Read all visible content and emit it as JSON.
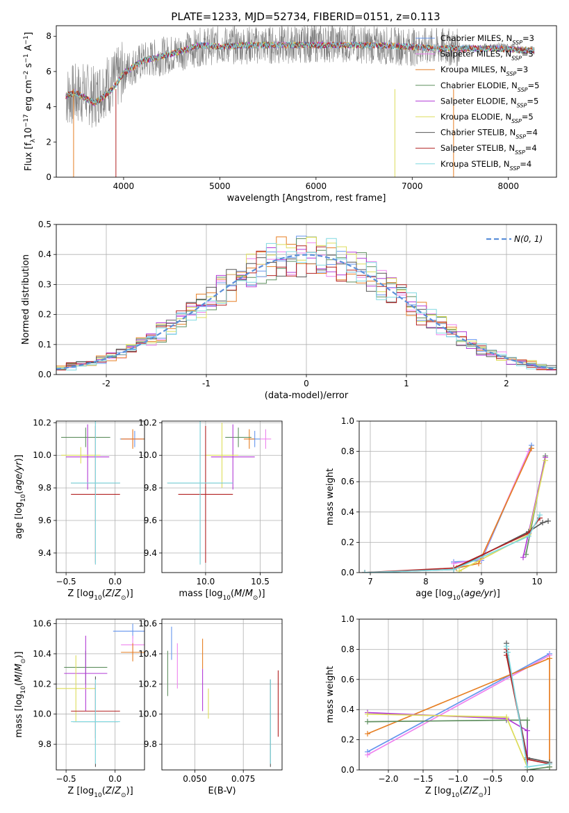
{
  "figure": {
    "title": "PLATE=1233, MJD=52734, FIBERID=0151, z=0.113"
  },
  "series": [
    {
      "name": "Chabrier MILES",
      "nssp": "3",
      "color": "#6495ed"
    },
    {
      "name": "Salpeter MILES",
      "nssp": "3",
      "color": "#ee82ee"
    },
    {
      "name": "Kroupa MILES",
      "nssp": "3",
      "color": "#e67e22"
    },
    {
      "name": "Chabrier ELODIE",
      "nssp": "5",
      "color": "#5f8f5f"
    },
    {
      "name": "Salpeter ELODIE",
      "nssp": "5",
      "color": "#b23ad6"
    },
    {
      "name": "Kroupa ELODIE",
      "nssp": "5",
      "color": "#dcdc5a"
    },
    {
      "name": "Chabrier STELIB",
      "nssp": "4",
      "color": "#555555"
    },
    {
      "name": "Salpeter STELIB",
      "nssp": "4",
      "color": "#b22222"
    },
    {
      "name": "Kroupa STELIB",
      "nssp": "4",
      "color": "#7fd8e0"
    }
  ],
  "chart_data": [
    {
      "id": "spectrum",
      "type": "line",
      "xlabel": "wavelength [Angstrom, rest frame]",
      "ylabel": "Flux [f",
      "xlim": [
        3300,
        8500
      ],
      "ylim": [
        0,
        8.6
      ],
      "xticks": [
        4000,
        5000,
        6000,
        7000,
        8000
      ],
      "yticks": [
        0,
        2,
        4,
        6,
        8
      ],
      "data_line": {
        "name": "data",
        "color": "#808080",
        "x": [
          3400,
          3500,
          3600,
          3700,
          3800,
          3900,
          4000,
          4200,
          4500,
          4800,
          5000,
          5300,
          5600,
          6000,
          6300,
          6600,
          7000,
          7300,
          7600,
          7900,
          8200
        ],
        "y": [
          4.6,
          4.7,
          4.8,
          4.5,
          5.2,
          5.4,
          6.0,
          6.6,
          7.0,
          7.4,
          7.5,
          7.5,
          7.5,
          7.6,
          7.6,
          7.5,
          7.4,
          7.4,
          7.3,
          7.4,
          7.2
        ]
      },
      "model_x": [
        3400,
        3500,
        3600,
        3700,
        3800,
        3900,
        4000,
        4200,
        4500,
        4800,
        5000,
        5300,
        5600,
        6000,
        6300,
        6600,
        7000,
        7300,
        7600,
        7900,
        8200
      ],
      "model_y": [
        4.6,
        4.8,
        4.5,
        4.2,
        4.6,
        5.1,
        5.9,
        6.6,
        7.0,
        7.5,
        7.4,
        7.5,
        7.5,
        7.5,
        7.5,
        7.5,
        7.4,
        7.3,
        7.3,
        7.3,
        7.2
      ]
    },
    {
      "id": "residuals",
      "type": "line",
      "xlabel": "(data-model)/error",
      "ylabel": "Normed distribution",
      "xlim": [
        -2.5,
        2.5
      ],
      "ylim": [
        0,
        0.5
      ],
      "xticks": [
        -2,
        -1,
        0,
        1,
        2
      ],
      "yticks": [
        0.0,
        0.1,
        0.2,
        0.3,
        0.4,
        0.5
      ],
      "legend": "N(0, 1)",
      "gaussian": {
        "mean": 0,
        "sigma": 1
      }
    },
    {
      "id": "age-vs-Z",
      "type": "scatter",
      "xlabel": "Z [log10(Z/Z☉)]",
      "ylabel": "age  [log10(age/yr)]",
      "xlim": [
        -0.6,
        0.3
      ],
      "ylim": [
        9.28,
        10.21
      ],
      "xticks": [
        -0.5,
        0.0
      ],
      "yticks": [
        9.4,
        9.6,
        9.8,
        10.0,
        10.2
      ],
      "points": [
        {
          "x": 0.2,
          "y": 10.1,
          "xerr": 0.15,
          "yerr": 0.05
        },
        {
          "x": 0.18,
          "y": 10.1,
          "xerr": 0.1,
          "yerr": 0.05
        },
        {
          "x": 0.18,
          "y": 10.1,
          "xerr": 0.12,
          "yerr": 0.06
        },
        {
          "x": -0.3,
          "y": 10.11,
          "xerr": 0.25,
          "yerr": 0.06
        },
        {
          "x": -0.28,
          "y": 9.99,
          "xerr": 0.22,
          "yerr": 0.2
        },
        {
          "x": -0.35,
          "y": 10.0,
          "xerr": 0.2,
          "yerr": 0.05
        },
        {
          "x": -0.2,
          "y": 9.83,
          "xerr": 0.25,
          "yerr": 0.5
        },
        {
          "x": -0.2,
          "y": 9.76,
          "xerr": 0.25,
          "yerr": 0.42
        },
        {
          "x": -0.2,
          "y": 9.83,
          "xerr": 0.25,
          "yerr": 0.5
        }
      ]
    },
    {
      "id": "age-vs-mass",
      "type": "scatter",
      "xlabel": "mass [log10(M/M☉)]",
      "ylabel": "",
      "xlim": [
        9.6,
        10.7
      ],
      "ylim": [
        9.28,
        10.21
      ],
      "xticks": [
        10.0,
        10.5
      ],
      "yticks": [
        9.4,
        9.6,
        9.8,
        10.0,
        10.2
      ],
      "points": [
        {
          "x": 10.45,
          "y": 10.1,
          "xerr": 0.05,
          "yerr": 0.05
        },
        {
          "x": 10.55,
          "y": 10.1,
          "xerr": 0.05,
          "yerr": 0.06
        },
        {
          "x": 10.4,
          "y": 10.1,
          "xerr": 0.05,
          "yerr": 0.06
        },
        {
          "x": 10.3,
          "y": 10.11,
          "xerr": 0.12,
          "yerr": 0.06
        },
        {
          "x": 10.25,
          "y": 9.99,
          "xerr": 0.2,
          "yerr": 0.2
        },
        {
          "x": 10.15,
          "y": 10.0,
          "xerr": 0.15,
          "yerr": 0.2
        },
        {
          "x": 9.95,
          "y": 9.83,
          "xerr": 0.3,
          "yerr": 0.5
        },
        {
          "x": 10.0,
          "y": 9.76,
          "xerr": 0.25,
          "yerr": 0.42
        },
        {
          "x": 9.95,
          "y": 9.83,
          "xerr": 0.3,
          "yerr": 0.5
        }
      ]
    },
    {
      "id": "weight-vs-age",
      "type": "line",
      "xlabel": "age  [log10(age/yr)]",
      "ylabel": "mass weight",
      "xlim": [
        6.8,
        10.35
      ],
      "ylim": [
        0,
        1.0
      ],
      "xticks": [
        7,
        8,
        9,
        10
      ],
      "yticks": [
        0.0,
        0.2,
        0.4,
        0.6,
        0.8,
        1.0
      ],
      "curves": [
        {
          "x": [
            8.5,
            9.0,
            9.9
          ],
          "y": [
            0.07,
            0.08,
            0.84
          ]
        },
        {
          "x": [
            8.5,
            9.0,
            9.85
          ],
          "y": [
            0.06,
            0.09,
            0.8
          ]
        },
        {
          "x": [
            8.55,
            8.95,
            9.9
          ],
          "y": [
            0.03,
            0.06,
            0.82
          ]
        },
        {
          "x": [
            9.8,
            10.15
          ],
          "y": [
            0.12,
            0.77
          ]
        },
        {
          "x": [
            9.75,
            10.15
          ],
          "y": [
            0.1,
            0.76
          ]
        },
        {
          "x": [
            8.6,
            9.85,
            10.15
          ],
          "y": [
            0.01,
            0.25,
            0.74
          ]
        },
        {
          "x": [
            6.9,
            8.5,
            9.85,
            10.1,
            10.2
          ],
          "y": [
            0.0,
            0.02,
            0.27,
            0.33,
            0.34
          ]
        },
        {
          "x": [
            6.9,
            8.5,
            9.85,
            10.05
          ],
          "y": [
            0.0,
            0.03,
            0.26,
            0.36
          ]
        },
        {
          "x": [
            6.9,
            8.5,
            9.85,
            10.05
          ],
          "y": [
            0.0,
            0.02,
            0.24,
            0.38
          ]
        }
      ]
    },
    {
      "id": "mass-vs-Z",
      "type": "scatter",
      "xlabel": "Z [log10(Z/Z☉)]",
      "ylabel": "mass [log10(M/M☉)]",
      "xlim": [
        -0.6,
        0.3
      ],
      "ylim": [
        9.63,
        10.63
      ],
      "xticks": [
        -0.5,
        0.0
      ],
      "yticks": [
        9.8,
        10.0,
        10.2,
        10.4,
        10.6
      ],
      "points": [
        {
          "x": 0.18,
          "y": 10.55,
          "xerr": 0.2,
          "yerr": 0.05
        },
        {
          "x": 0.18,
          "y": 10.46,
          "xerr": 0.12,
          "yerr": 0.06
        },
        {
          "x": 0.18,
          "y": 10.41,
          "xerr": 0.12,
          "yerr": 0.06
        },
        {
          "x": -0.3,
          "y": 10.31,
          "xerr": 0.22,
          "yerr": 0.11
        },
        {
          "x": -0.3,
          "y": 10.27,
          "xerr": 0.22,
          "yerr": 0.25
        },
        {
          "x": -0.4,
          "y": 10.17,
          "xerr": 0.2,
          "yerr": 0.22
        },
        {
          "x": -0.2,
          "y": 9.95,
          "xerr": 0.23,
          "yerr": 0.3
        },
        {
          "x": -0.2,
          "y": 10.02,
          "xerr": 0.25,
          "yerr": 0.18
        },
        {
          "x": -0.2,
          "y": 9.95,
          "xerr": 0.25,
          "yerr": 0.28
        }
      ]
    },
    {
      "id": "mass-vs-EBV",
      "type": "scatter",
      "xlabel": "E(B-V)",
      "ylabel": "",
      "xlim": [
        0.033,
        0.095
      ],
      "ylim": [
        9.63,
        10.63
      ],
      "xticks": [
        0.05,
        0.075
      ],
      "tick_labels": [
        "0.050",
        "0.075"
      ],
      "yticks": [
        9.8,
        10.0,
        10.2,
        10.4,
        10.6
      ],
      "points": [
        {
          "x": 0.038,
          "y": 10.47,
          "xerr": 0,
          "yerr": 0.11
        },
        {
          "x": 0.041,
          "y": 10.32,
          "xerr": 0,
          "yerr": 0.15
        },
        {
          "x": 0.054,
          "y": 10.4,
          "xerr": 0,
          "yerr": 0.1
        },
        {
          "x": 0.036,
          "y": 10.27,
          "xerr": 0,
          "yerr": 0.15
        },
        {
          "x": 0.054,
          "y": 10.16,
          "xerr": 0,
          "yerr": 0.14
        },
        {
          "x": 0.057,
          "y": 10.07,
          "xerr": 0,
          "yerr": 0.1
        },
        {
          "x": 0.089,
          "y": 9.94,
          "xerr": 0,
          "yerr": 0.29
        },
        {
          "x": 0.093,
          "y": 10.07,
          "xerr": 0,
          "yerr": 0.22
        },
        {
          "x": 0.089,
          "y": 9.95,
          "xerr": 0,
          "yerr": 0.28
        }
      ]
    },
    {
      "id": "weight-vs-Z",
      "type": "line",
      "xlabel": "Z [log10(Z/Z☉)]",
      "ylabel": "mass weight",
      "xlim": [
        -2.42,
        0.42
      ],
      "ylim": [
        0,
        1.0
      ],
      "xticks": [
        -2.0,
        -1.5,
        -1.0,
        -0.5,
        0.0
      ],
      "yticks": [
        0.0,
        0.2,
        0.4,
        0.6,
        0.8,
        1.0
      ],
      "curves": [
        {
          "x": [
            -2.3,
            0.32
          ],
          "y": [
            0.12,
            0.77
          ]
        },
        {
          "x": [
            -2.3,
            0.32
          ],
          "y": [
            0.1,
            0.76
          ]
        },
        {
          "x": [
            -2.3,
            0.32,
            0.32
          ],
          "y": [
            0.24,
            0.74,
            0.02
          ]
        },
        {
          "x": [
            -2.3,
            -0.3,
            0.0,
            0.0,
            0.32
          ],
          "y": [
            0.32,
            0.33,
            0.33,
            0.0,
            0.02
          ]
        },
        {
          "x": [
            -2.3,
            -0.3,
            0.0,
            0.0
          ],
          "y": [
            0.38,
            0.34,
            0.26,
            0.0
          ]
        },
        {
          "x": [
            -2.3,
            -0.3,
            0.0,
            0.0
          ],
          "y": [
            0.37,
            0.35,
            0.02,
            0.0
          ]
        },
        {
          "x": [
            -0.3,
            -0.3,
            0.0,
            0.32
          ],
          "y": [
            0.84,
            0.78,
            0.08,
            0.05
          ]
        },
        {
          "x": [
            -0.3,
            -0.3,
            0.0,
            0.32
          ],
          "y": [
            0.8,
            0.76,
            0.07,
            0.04
          ]
        },
        {
          "x": [
            -0.3,
            -0.28,
            0.0,
            0.32
          ],
          "y": [
            0.82,
            0.78,
            0.02,
            0.04
          ]
        }
      ]
    }
  ]
}
